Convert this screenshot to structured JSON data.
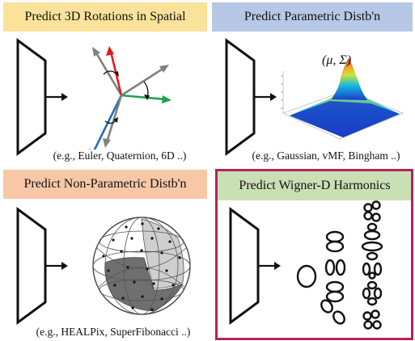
{
  "panels": [
    {
      "title": "Predict 3D Rotations in Spatial",
      "caption": "(e.g., Euler, Quaternion, 6D ..)",
      "header_color": "#fbe29b"
    },
    {
      "title": "Predict Parametric Distb'n",
      "formula": "(μ, Σ)",
      "caption": "(e.g., Gaussian, vMF, Bingham ..)",
      "header_color": "#b7c8e6"
    },
    {
      "title": "Predict Non-Parametric Distb'n",
      "caption": "(e.g., HEALPix, SuperFibonacci ..)",
      "header_color": "#f7c7a6"
    },
    {
      "title": "Predict Wigner-D Harmonics",
      "caption": "",
      "header_color": "#c9dfb4",
      "highlight_color": "#b3245a"
    }
  ],
  "axis_colors": {
    "red": "#e41a1c",
    "green": "#1aa34a",
    "blue": "#1f6fbf",
    "gray": "#808080"
  }
}
